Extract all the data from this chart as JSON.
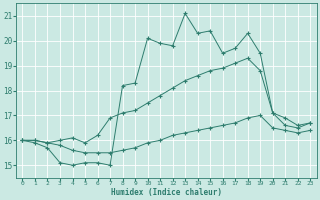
{
  "x": [
    0,
    1,
    2,
    3,
    4,
    5,
    6,
    7,
    8,
    9,
    10,
    11,
    12,
    13,
    14,
    15,
    16,
    17,
    18,
    19,
    20,
    21,
    22,
    23
  ],
  "series1": [
    16.0,
    15.9,
    15.7,
    15.1,
    15.0,
    15.1,
    15.1,
    15.0,
    18.2,
    18.3,
    20.1,
    19.9,
    19.8,
    21.1,
    20.3,
    20.4,
    19.5,
    19.7,
    20.3,
    19.5,
    17.1,
    16.6,
    16.5,
    16.7
  ],
  "series2": [
    16.0,
    16.0,
    15.9,
    16.0,
    16.1,
    15.9,
    16.2,
    16.9,
    17.1,
    17.2,
    17.5,
    17.8,
    18.1,
    18.4,
    18.6,
    18.8,
    18.9,
    19.1,
    19.3,
    18.8,
    17.1,
    16.9,
    16.6,
    16.7
  ],
  "series3": [
    16.0,
    16.0,
    15.9,
    15.8,
    15.6,
    15.5,
    15.5,
    15.5,
    15.6,
    15.7,
    15.9,
    16.0,
    16.2,
    16.3,
    16.4,
    16.5,
    16.6,
    16.7,
    16.9,
    17.0,
    16.5,
    16.4,
    16.3,
    16.4
  ],
  "line_color": "#2E7D6E",
  "bg_color": "#CBE9E3",
  "grid_color": "#AACFC8",
  "xlabel": "Humidex (Indice chaleur)",
  "ylim": [
    14.5,
    21.5
  ],
  "xlim": [
    -0.5,
    23.5
  ],
  "yticks": [
    15,
    16,
    17,
    18,
    19,
    20,
    21
  ],
  "xticks": [
    0,
    1,
    2,
    3,
    4,
    5,
    6,
    7,
    8,
    9,
    10,
    11,
    12,
    13,
    14,
    15,
    16,
    17,
    18,
    19,
    20,
    21,
    22,
    23
  ]
}
